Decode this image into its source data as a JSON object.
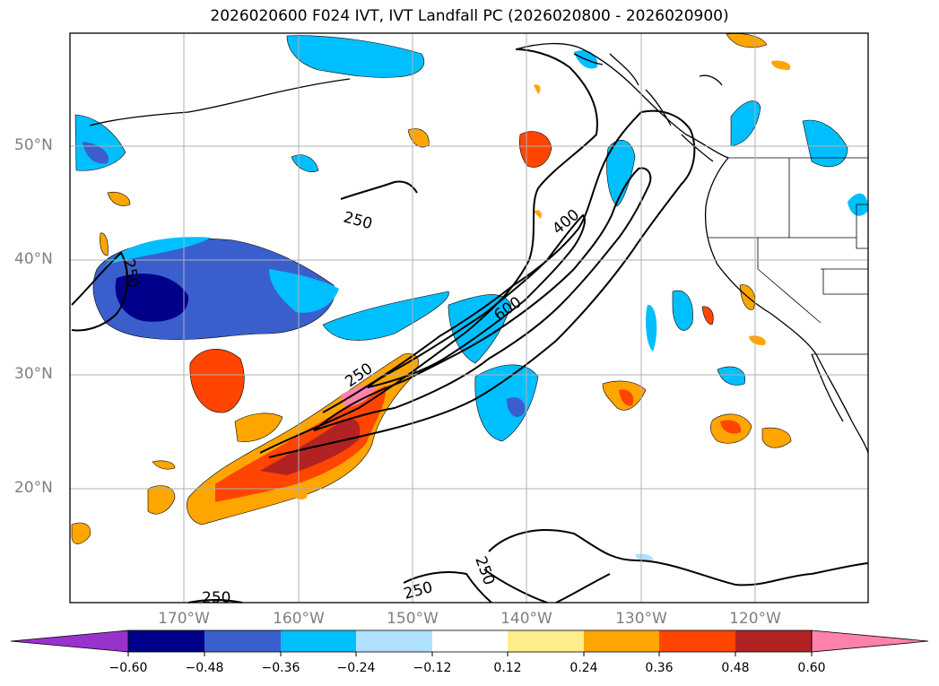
{
  "title": "2026020600 F024 IVT, IVT Landfall PC (2026020800 - 2026020900)",
  "lat_labels": [
    "50°N",
    "40°N",
    "30°N",
    "20°N"
  ],
  "lon_labels": [
    "170°W",
    "160°W",
    "150°W",
    "140°W",
    "130°W",
    "120°W"
  ],
  "contour_labels": [
    "250",
    "250",
    "250",
    "400",
    "600",
    "250",
    "250",
    "250"
  ],
  "colorbar": {
    "ticks": [
      "−0.60",
      "−0.48",
      "−0.36",
      "−0.24",
      "−0.12",
      "0.12",
      "0.24",
      "0.36",
      "0.48",
      "0.60"
    ],
    "colors": [
      "#9932cc",
      "#00008b",
      "#3a5fcd",
      "#00bfff",
      "#b0e2ff",
      "#ffffff",
      "#ffec8b",
      "#ffa500",
      "#ff4500",
      "#b22222",
      "#ff82ab"
    ]
  },
  "colors": {
    "grid": "#b0b0b0",
    "contour": "#000000",
    "label": "#808080"
  }
}
